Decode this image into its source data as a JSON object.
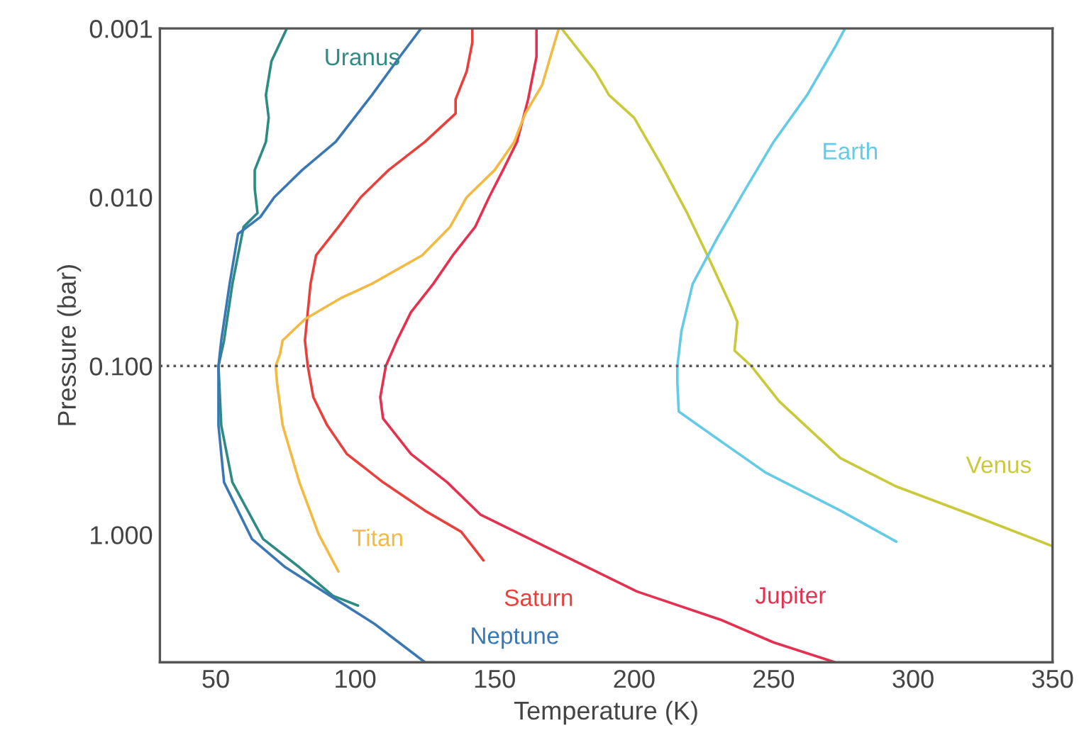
{
  "chart_data": {
    "type": "line",
    "xlabel": "Temperature (K)",
    "ylabel": "Pressure (bar)",
    "xlim": [
      30,
      350
    ],
    "xticks": [
      50,
      100,
      150,
      200,
      250,
      300,
      350
    ],
    "ylim": [
      5.7,
      0.001
    ],
    "log": "y",
    "yticks": [
      {
        "value": 0.001,
        "label": "0.001"
      },
      {
        "value": 0.01,
        "label": "0.010"
      },
      {
        "value": 0.1,
        "label": "0.100"
      },
      {
        "value": 1,
        "label": "1.000"
      }
    ],
    "grid": false,
    "legend": false,
    "ref_lines": [
      {
        "axis": "y",
        "value": 0.1,
        "color": "#555555",
        "line_style": "dotted"
      }
    ],
    "series": [
      {
        "name": "Uranus",
        "color": "#2e8b84",
        "x": [
          75.5,
          70,
          68,
          69,
          68,
          64,
          64,
          65,
          60,
          56,
          53,
          51,
          52,
          56,
          67,
          80,
          92,
          101
        ],
        "values": [
          0.001,
          0.00156,
          0.00248,
          0.00338,
          0.0047,
          0.0069,
          0.0089,
          0.0124,
          0.015,
          0.0326,
          0.0706,
          0.1,
          0.225,
          0.489,
          1.06,
          1.56,
          2.3,
          2.63
        ]
      },
      {
        "name": "Neptune",
        "color": "#3a78b5",
        "x": [
          123.6,
          116,
          106,
          93,
          81,
          71,
          66,
          58,
          55,
          52,
          51,
          51,
          53,
          63,
          75,
          91,
          107,
          125
        ],
        "values": [
          0.001,
          0.00147,
          0.00248,
          0.0047,
          0.0069,
          0.01,
          0.0131,
          0.0165,
          0.0326,
          0.0706,
          0.1,
          0.225,
          0.489,
          1.06,
          1.56,
          2.3,
          3.38,
          5.7
        ]
      },
      {
        "name": "Saturn",
        "color": "#e8413c",
        "x": [
          142,
          142,
          140,
          136,
          136,
          125,
          112,
          102,
          94,
          86,
          84,
          83,
          82,
          83,
          85,
          90,
          97,
          110,
          125,
          138,
          146
        ],
        "values": [
          0.001,
          0.00121,
          0.00179,
          0.00263,
          0.00319,
          0.0047,
          0.0069,
          0.01,
          0.015,
          0.0221,
          0.0326,
          0.048,
          0.0706,
          0.1,
          0.153,
          0.225,
          0.332,
          0.489,
          0.72,
          0.96,
          1.42
        ]
      },
      {
        "name": "Jupiter",
        "color": "#e5304f",
        "x": [
          165,
          165,
          162,
          158,
          153,
          148,
          143,
          135,
          128,
          120,
          115,
          111,
          109,
          110,
          120,
          133,
          145,
          176,
          201,
          231,
          250,
          272
        ],
        "values": [
          0.001,
          0.00147,
          0.00263,
          0.0047,
          0.0069,
          0.01,
          0.015,
          0.0221,
          0.0326,
          0.048,
          0.0706,
          0.1,
          0.153,
          0.205,
          0.332,
          0.489,
          0.762,
          1.36,
          2.17,
          3.19,
          4.35,
          5.7
        ]
      },
      {
        "name": "Titan",
        "color": "#f4b942",
        "x": [
          173,
          170,
          167,
          161,
          157,
          150,
          140,
          134,
          124,
          106,
          95,
          82,
          74,
          73,
          71.5,
          72,
          74,
          80,
          87,
          94
        ],
        "values": [
          0.001,
          0.00147,
          0.00217,
          0.00319,
          0.0047,
          0.0069,
          0.01,
          0.015,
          0.0221,
          0.0326,
          0.0395,
          0.0528,
          0.0706,
          0.0858,
          0.1,
          0.126,
          0.225,
          0.489,
          1.0,
          1.65
        ]
      },
      {
        "name": "Venus",
        "color": "#c9c93a",
        "x": [
          174,
          186,
          191,
          200,
          210,
          219,
          227,
          235,
          237,
          236,
          242,
          252,
          274,
          294,
          321,
          350
        ],
        "values": [
          0.001,
          0.00179,
          0.00248,
          0.00338,
          0.00653,
          0.0124,
          0.0234,
          0.0452,
          0.0549,
          0.081,
          0.1,
          0.162,
          0.352,
          0.518,
          0.762,
          1.17
        ]
      },
      {
        "name": "Earth",
        "color": "#63cbe8",
        "x": [
          275.6,
          272,
          262,
          250,
          240,
          230,
          221,
          217,
          215.5,
          215.5,
          216,
          223,
          247,
          274,
          294
        ],
        "values": [
          0.001,
          0.00129,
          0.00248,
          0.0047,
          0.0089,
          0.0172,
          0.0326,
          0.0617,
          0.1,
          0.126,
          0.186,
          0.225,
          0.427,
          0.72,
          1.1
        ]
      }
    ]
  }
}
